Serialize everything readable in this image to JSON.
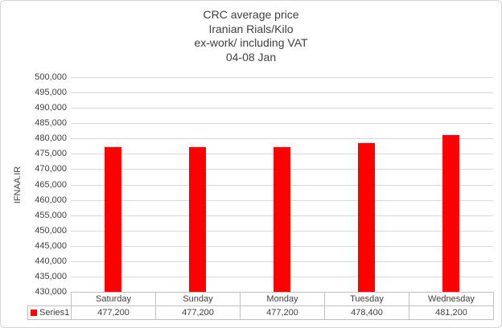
{
  "window": {
    "background": "#FFFFFF",
    "border_color": "#D5D5D5"
  },
  "chart_data": {
    "type": "bar",
    "title_lines": [
      "CRC average price",
      "Iranian Rials/Kilo",
      "ex-work/ including VAT",
      "04-08 Jan"
    ],
    "ylabel": "IFNAA.IR",
    "xlabel": "",
    "categories": [
      "Saturday",
      "Sunday",
      "Monday",
      "Tuesday",
      "Wednesday"
    ],
    "series": [
      {
        "name": "Series1",
        "color": "#FF0000",
        "values": [
          477200,
          477200,
          477200,
          478400,
          481200
        ]
      }
    ],
    "value_labels": [
      "477,200",
      "477,200",
      "477,200",
      "478,400",
      "481,200"
    ],
    "ylim": [
      430000,
      500000
    ],
    "ytick_step": 5000,
    "ytick_labels": [
      "500,000",
      "495,000",
      "490,000",
      "485,000",
      "480,000",
      "475,000",
      "470,000",
      "465,000",
      "460,000",
      "455,000",
      "450,000",
      "445,000",
      "440,000",
      "435,000",
      "430,000"
    ],
    "grid": true,
    "gridline_color": "#D9D9D9",
    "table_border_color": "#BFBFBF",
    "text_color": "#404040",
    "legend": {
      "position": "bottom-table",
      "entries": [
        "Series1"
      ]
    }
  }
}
